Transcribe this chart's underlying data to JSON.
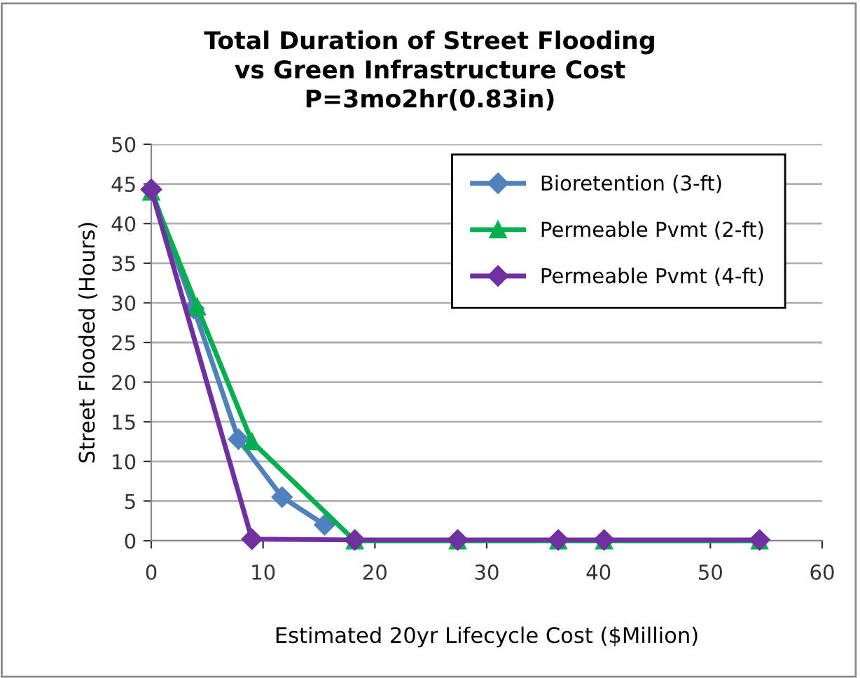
{
  "chart_data": {
    "type": "line",
    "title": "Total Duration of Street Flooding\nvs Green Infrastructure Cost\nP=3mo2hr(0.83in)",
    "xlabel": "Estimated 20yr Lifecycle Cost ($Million)",
    "ylabel": "Street Flooded (Hours)",
    "xlim": [
      0,
      60
    ],
    "xticks": [
      0,
      10,
      20,
      30,
      40,
      50,
      60
    ],
    "ylim": [
      0,
      50
    ],
    "yticks": [
      0,
      5,
      10,
      15,
      20,
      25,
      30,
      35,
      40,
      45,
      50
    ],
    "grid": "y",
    "legend": "top right",
    "series": [
      {
        "name": "Bioretention (3-ft)",
        "color": "#4f81bd",
        "marker": "diamond",
        "x": [
          0,
          3.8,
          7.8,
          11.7,
          15.5
        ],
        "values": [
          44.3,
          29.3,
          12.8,
          5.5,
          2.0
        ]
      },
      {
        "name": "Permeable Pvmt (2-ft)",
        "color": "#00b050",
        "marker": "triangle",
        "x": [
          0,
          4.1,
          9.0,
          18.2,
          27.4,
          36.4,
          40.5,
          54.4
        ],
        "values": [
          44.0,
          29.5,
          12.5,
          0,
          0,
          0,
          0,
          0
        ]
      },
      {
        "name": "Permeable Pvmt (4-ft)",
        "color": "#7030a0",
        "marker": "diamond",
        "x": [
          0,
          9.0,
          18.2,
          27.4,
          36.4,
          40.5,
          54.4
        ],
        "values": [
          44.3,
          0.2,
          0.1,
          0.1,
          0.1,
          0.1,
          0.1
        ]
      }
    ]
  }
}
